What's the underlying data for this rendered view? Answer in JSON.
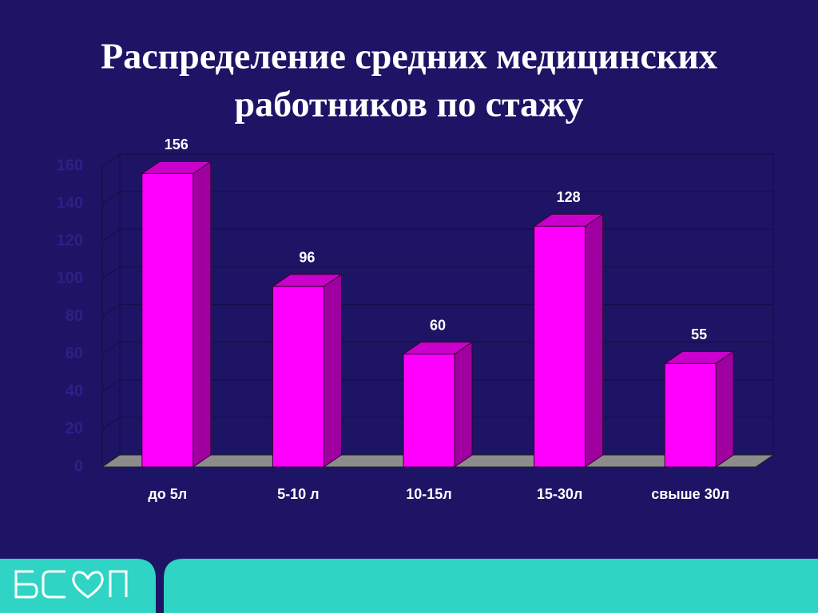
{
  "chart_data": {
    "type": "bar3d",
    "title_lines": [
      "Распределение средних медицинских",
      "работников по стажу"
    ],
    "categories": [
      "до 5л",
      "5-10 л",
      "10-15л",
      "15-30л",
      "свыше 30л"
    ],
    "values": [
      156,
      96,
      60,
      128,
      55
    ],
    "color": "#ff00ff",
    "ylim": [
      0,
      160
    ],
    "yticks": [
      0,
      20,
      40,
      60,
      80,
      100,
      120,
      140,
      160
    ],
    "grid": true
  }
}
